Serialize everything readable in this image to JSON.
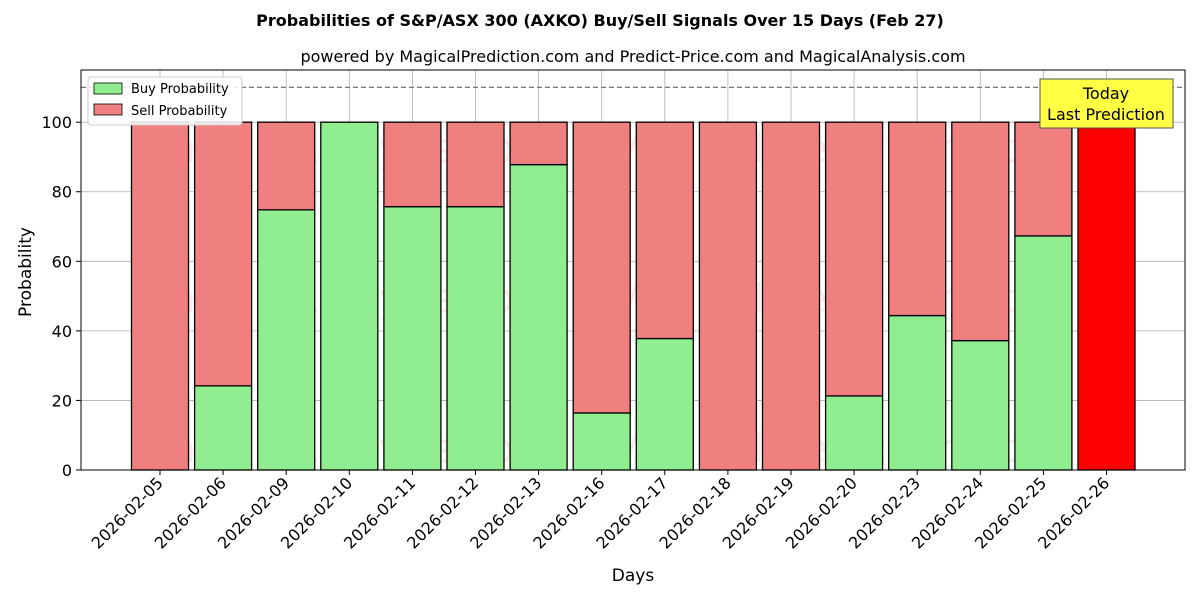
{
  "chart_data": {
    "type": "bar",
    "title": "Probabilities of S&P/ASX 300 (AXKO) Buy/Sell Signals Over 15 Days (Feb 27)",
    "subtitle": "powered by MagicalPrediction.com and Predict-Price.com and MagicalAnalysis.com",
    "xlabel": "Days",
    "ylabel": "Probability",
    "ylim": [
      0,
      115
    ],
    "yticks": [
      0,
      20,
      40,
      60,
      80,
      100
    ],
    "grid": true,
    "stacked": true,
    "legend_position": "top-left",
    "categories": [
      "2026-02-05",
      "2026-02-06",
      "2026-02-09",
      "2026-02-10",
      "2026-02-11",
      "2026-02-12",
      "2026-02-13",
      "2026-02-16",
      "2026-02-17",
      "2026-02-18",
      "2026-02-19",
      "2026-02-20",
      "2026-02-23",
      "2026-02-24",
      "2026-02-25",
      "2026-02-26"
    ],
    "series": [
      {
        "name": "Buy Probability",
        "color": "#90ee90",
        "values": [
          0,
          24.2,
          74.8,
          100,
          75.7,
          75.7,
          87.8,
          16.4,
          37.8,
          0,
          0,
          21.3,
          44.4,
          37.2,
          67.3,
          0
        ]
      },
      {
        "name": "Sell Probability",
        "color": "#f08080",
        "values": [
          100,
          75.8,
          25.2,
          0,
          24.3,
          24.3,
          12.2,
          83.6,
          62.2,
          100,
          100,
          78.7,
          55.6,
          62.8,
          32.7,
          100
        ]
      }
    ],
    "highlight": {
      "index": 15,
      "color": "#ff0000",
      "label_line1": "Today",
      "label_line2": "Last Prediction",
      "label_bg": "#ffff44"
    },
    "reference_line": {
      "y": 110,
      "style": "dashed"
    },
    "watermarks": [
      "MagicalAnalysis.com",
      "MagicalPrediction.com"
    ]
  }
}
